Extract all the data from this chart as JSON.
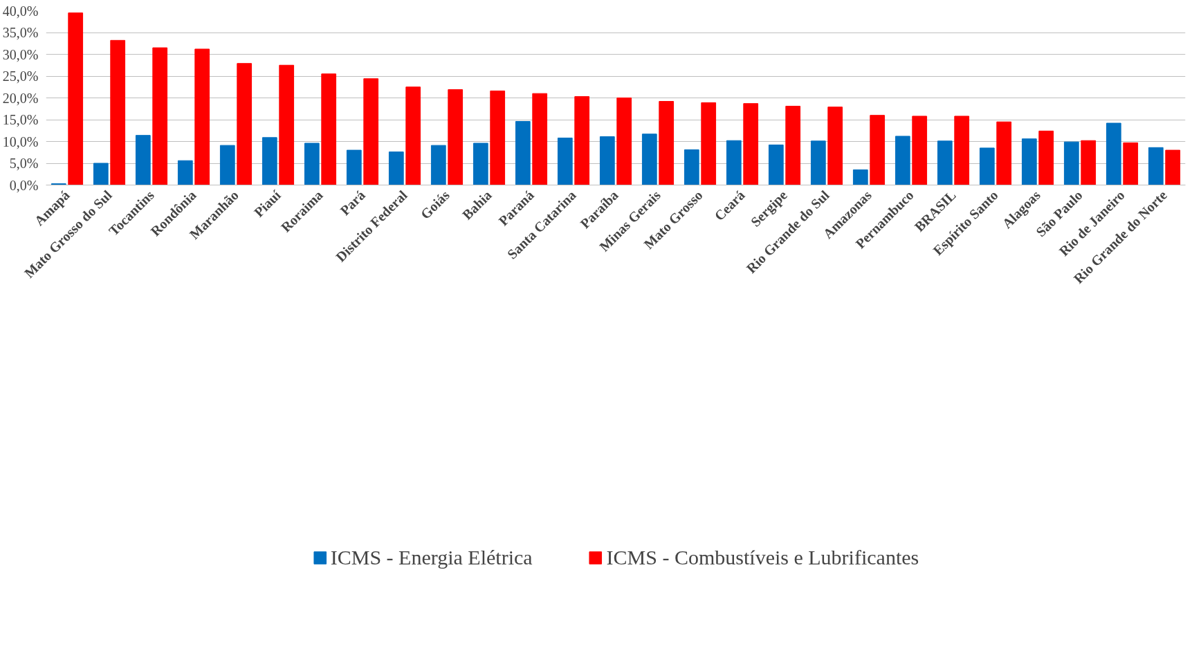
{
  "chart_data": {
    "type": "bar",
    "categories": [
      "Amapá",
      "Mato Grosso do Sul",
      "Tocantins",
      "Rondônia",
      "Maranhão",
      "Piauí",
      "Roraima",
      "Pará",
      "Distrito Federal",
      "Goiás",
      "Bahia",
      "Paraná",
      "Santa Catarina",
      "Paraíba",
      "Minas Gerais",
      "Mato Grosso",
      "Ceará",
      "Sergipe",
      "Rio Grande do Sul",
      "Amazonas",
      "Pernambuco",
      "BRASIL",
      "Espírito Santo",
      "Alagoas",
      "São Paulo",
      "Rio de Janeiro",
      "Rio Grande do Norte"
    ],
    "series": [
      {
        "name": "ICMS - Energia Elétrica",
        "color": "#0070c0",
        "values": [
          0.3,
          5.0,
          11.4,
          5.6,
          9.1,
          10.9,
          9.6,
          8.0,
          7.6,
          9.1,
          9.6,
          14.6,
          10.8,
          11.1,
          11.7,
          8.1,
          10.2,
          9.2,
          10.1,
          3.5,
          11.2,
          10.1,
          8.5,
          10.6,
          9.9,
          14.2,
          8.6
        ]
      },
      {
        "name": "ICMS - Combustíveis e Lubrificantes",
        "color": "#ff0000",
        "values": [
          39.5,
          33.2,
          31.5,
          31.2,
          27.9,
          27.5,
          25.5,
          24.4,
          22.5,
          21.9,
          21.6,
          21.0,
          20.3,
          20.0,
          19.2,
          18.9,
          18.7,
          18.1,
          17.9,
          16.0,
          15.8,
          15.8,
          14.5,
          12.4,
          10.2,
          9.7,
          8.0
        ]
      }
    ],
    "ylim": [
      0,
      40
    ],
    "yticks": [
      {
        "value": 0,
        "label": "0,0%"
      },
      {
        "value": 5,
        "label": "5,0%"
      },
      {
        "value": 10,
        "label": "10,0%"
      },
      {
        "value": 15,
        "label": "15,0%"
      },
      {
        "value": 20,
        "label": "20,0%"
      },
      {
        "value": 25,
        "label": "25,0%"
      },
      {
        "value": 30,
        "label": "30,0%"
      },
      {
        "value": 35,
        "label": "35,0%"
      },
      {
        "value": 40,
        "label": "40,0%"
      }
    ],
    "grid": "y",
    "legend": "bottom"
  }
}
